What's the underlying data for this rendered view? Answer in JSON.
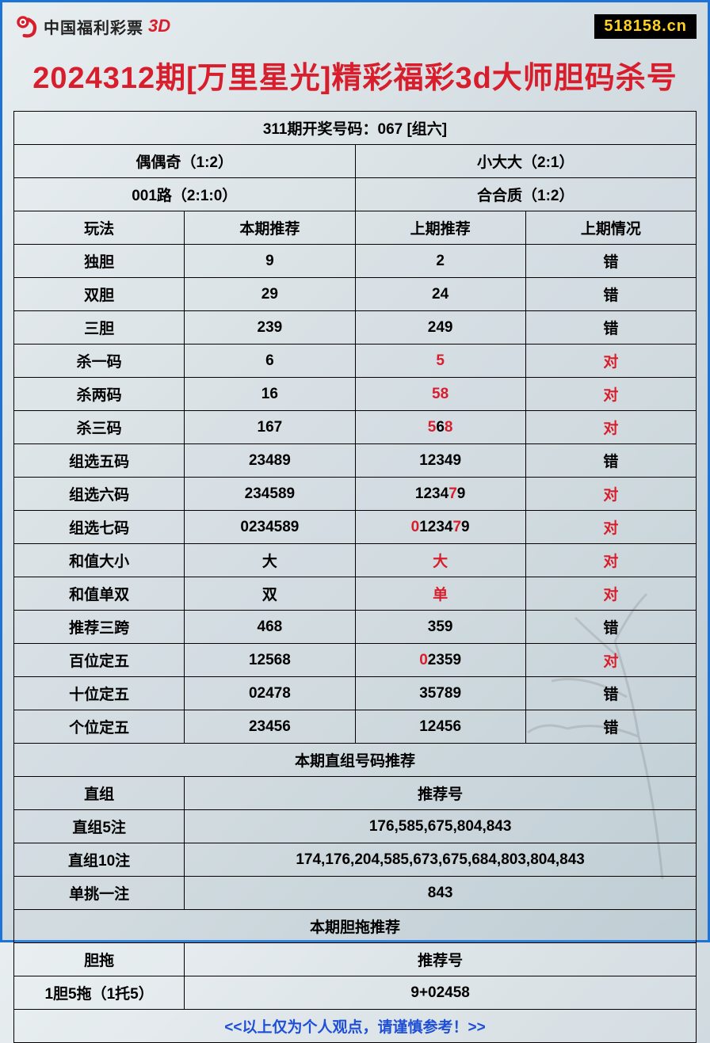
{
  "header": {
    "logo_text": "中国福利彩票",
    "logo_suffix": "3D",
    "site_badge": "518158.cn"
  },
  "title": "2024312期[万里星光]精彩福彩3d大师胆码杀号",
  "prev_result_row": "311期开奖号码：067 [组六]",
  "summary_grid": {
    "r1c1": "偶偶奇（1:2）",
    "r1c2": "小大大（2:1）",
    "r2c1": "001路（2:1:0）",
    "r2c2": "合合质（1:2）"
  },
  "columns": {
    "c1": "玩法",
    "c2": "本期推荐",
    "c3": "上期推荐",
    "c4": "上期情况"
  },
  "rows": [
    {
      "play": "独胆",
      "current": "9",
      "prev": [
        {
          "t": "2",
          "r": false
        }
      ],
      "status": "错",
      "status_red": false
    },
    {
      "play": "双胆",
      "current": "29",
      "prev": [
        {
          "t": "24",
          "r": false
        }
      ],
      "status": "错",
      "status_red": false
    },
    {
      "play": "三胆",
      "current": "239",
      "prev": [
        {
          "t": "249",
          "r": false
        }
      ],
      "status": "错",
      "status_red": false
    },
    {
      "play": "杀一码",
      "current": "6",
      "prev": [
        {
          "t": "5",
          "r": true
        }
      ],
      "status": "对",
      "status_red": true
    },
    {
      "play": "杀两码",
      "current": "16",
      "prev": [
        {
          "t": "58",
          "r": true
        }
      ],
      "status": "对",
      "status_red": true
    },
    {
      "play": "杀三码",
      "current": "167",
      "prev": [
        {
          "t": "5",
          "r": true
        },
        {
          "t": "6",
          "r": false
        },
        {
          "t": "8",
          "r": true
        }
      ],
      "status": "对",
      "status_red": true
    },
    {
      "play": "组选五码",
      "current": "23489",
      "prev": [
        {
          "t": "12349",
          "r": false
        }
      ],
      "status": "错",
      "status_red": false
    },
    {
      "play": "组选六码",
      "current": "234589",
      "prev": [
        {
          "t": "1234",
          "r": false
        },
        {
          "t": "7",
          "r": true
        },
        {
          "t": "9",
          "r": false
        }
      ],
      "status": "对",
      "status_red": true
    },
    {
      "play": "组选七码",
      "current": "0234589",
      "prev": [
        {
          "t": "0",
          "r": true
        },
        {
          "t": "1234",
          "r": false
        },
        {
          "t": "7",
          "r": true
        },
        {
          "t": "9",
          "r": false
        }
      ],
      "status": "对",
      "status_red": true
    },
    {
      "play": "和值大小",
      "current": "大",
      "prev": [
        {
          "t": "大",
          "r": true
        }
      ],
      "status": "对",
      "status_red": true
    },
    {
      "play": "和值单双",
      "current": "双",
      "prev": [
        {
          "t": "单",
          "r": true
        }
      ],
      "status": "对",
      "status_red": true
    },
    {
      "play": "推荐三跨",
      "current": "468",
      "prev": [
        {
          "t": "359",
          "r": false
        }
      ],
      "status": "错",
      "status_red": false
    },
    {
      "play": "百位定五",
      "current": "12568",
      "prev": [
        {
          "t": "0",
          "r": true
        },
        {
          "t": "2359",
          "r": false
        }
      ],
      "status": "对",
      "status_red": true
    },
    {
      "play": "十位定五",
      "current": "02478",
      "prev": [
        {
          "t": "35789",
          "r": false
        }
      ],
      "status": "错",
      "status_red": false
    },
    {
      "play": "个位定五",
      "current": "23456",
      "prev": [
        {
          "t": "12456",
          "r": false
        }
      ],
      "status": "错",
      "status_red": false
    }
  ],
  "section2_header": "本期直组号码推荐",
  "section2_cols": {
    "c1": "直组",
    "c2": "推荐号"
  },
  "section2_rows": [
    {
      "label": "直组5注",
      "value": "176,585,675,804,843"
    },
    {
      "label": "直组10注",
      "value": "174,176,204,585,673,675,684,803,804,843"
    },
    {
      "label": "单挑一注",
      "value": "843"
    }
  ],
  "section3_header": "本期胆拖推荐",
  "section3_cols": {
    "c1": "胆拖",
    "c2": "推荐号"
  },
  "section3_rows": [
    {
      "label": "1胆5拖（1托5）",
      "value": "9+02458"
    }
  ],
  "footer_note": "<<以上仅为个人观点，请谨慎参考！>>",
  "colors": {
    "border": "#1e73d6",
    "title_red": "#d81e2c",
    "text_black": "#000000",
    "badge_bg": "#000000",
    "badge_fg": "#ffd21f",
    "footer_blue": "#1e4fd6"
  }
}
